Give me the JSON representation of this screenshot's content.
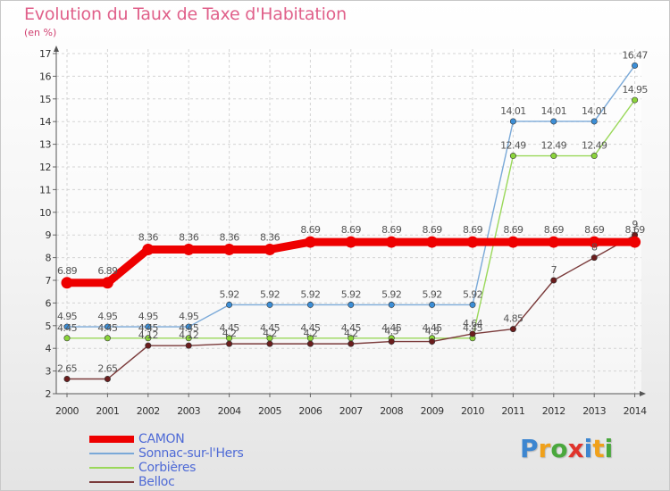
{
  "title": "Evolution du Taux de Taxe d'Habitation",
  "unit_label": "(en %)",
  "brand": {
    "letters": [
      {
        "ch": "P",
        "color": "#3d86d0"
      },
      {
        "ch": "r",
        "color": "#f0a11b"
      },
      {
        "ch": "o",
        "color": "#4aa83d"
      },
      {
        "ch": "x",
        "color": "#e0342c"
      },
      {
        "ch": "i",
        "color": "#3d86d0"
      },
      {
        "ch": "t",
        "color": "#f0a11b"
      },
      {
        "ch": "i",
        "color": "#4aa83d"
      }
    ]
  },
  "chart_data": {
    "type": "line",
    "x": [
      "2000",
      "2001",
      "2002",
      "2003",
      "2004",
      "2005",
      "2006",
      "2007",
      "2008",
      "2009",
      "2010",
      "2011",
      "2012",
      "2013",
      "2014"
    ],
    "ylim": [
      2,
      17
    ],
    "yticks": [
      2,
      3,
      4,
      5,
      6,
      7,
      8,
      9,
      10,
      11,
      12,
      13,
      14,
      15,
      16,
      17
    ],
    "grid": true,
    "grid_style": "dashed",
    "legend_position": "bottom-left",
    "series": [
      {
        "name": "CAMON",
        "color": "#ee0000",
        "marker_color": "#ee0000",
        "thick": true,
        "values": [
          6.89,
          6.89,
          8.36,
          8.36,
          8.36,
          8.36,
          8.69,
          8.69,
          8.69,
          8.69,
          8.69,
          8.69,
          8.69,
          8.69,
          8.69
        ],
        "labels": [
          "6.89",
          "6.89",
          "8.36",
          "8.36",
          "8.36",
          "8.36",
          "8.69",
          "8.69",
          "8.69",
          "8.69",
          "8.69",
          "8.69",
          "8.69",
          "8.69",
          "8.69"
        ]
      },
      {
        "name": "Sonnac-sur-l'Hers",
        "color": "#7aa9d8",
        "marker_color": "#3c8ed6",
        "thick": false,
        "values": [
          4.95,
          4.95,
          4.95,
          4.95,
          5.92,
          5.92,
          5.92,
          5.92,
          5.92,
          5.92,
          5.92,
          14.01,
          14.01,
          14.01,
          16.47
        ],
        "labels": [
          "4.95",
          "4.95",
          "4.95",
          "4.95",
          "5.92",
          "5.92",
          "5.92",
          "5.92",
          "5.92",
          "5.92",
          "5.92",
          "14.01",
          "14.01",
          "14.01",
          "16.47"
        ]
      },
      {
        "name": "Corbières",
        "color": "#9ad85a",
        "marker_color": "#8bd43b",
        "thick": false,
        "values": [
          4.45,
          4.45,
          4.45,
          4.45,
          4.45,
          4.45,
          4.45,
          4.45,
          4.45,
          4.45,
          4.45,
          12.49,
          12.49,
          12.49,
          14.95
        ],
        "labels": [
          "4.45",
          "4.45",
          "4.45",
          "4.45",
          "4.45",
          "4.45",
          "4.45",
          "4.45",
          "4.45",
          "4.45",
          "4.45",
          "12.49",
          "12.49",
          "12.49",
          "14.95"
        ]
      },
      {
        "name": "Belloc",
        "color": "#7a3a3a",
        "marker_color": "#6b1d1d",
        "thick": false,
        "values": [
          2.65,
          2.65,
          4.12,
          4.12,
          4.2,
          4.2,
          4.2,
          4.2,
          4.3,
          4.3,
          4.64,
          4.85,
          7,
          8,
          9
        ],
        "labels": [
          "2.65",
          "2.65",
          "4.12",
          "4.12",
          "4.2",
          "4.2",
          "4.2",
          "4.2",
          "4.3",
          "4.3",
          "4.64",
          "4.85",
          "7",
          "8",
          "9"
        ]
      }
    ]
  }
}
